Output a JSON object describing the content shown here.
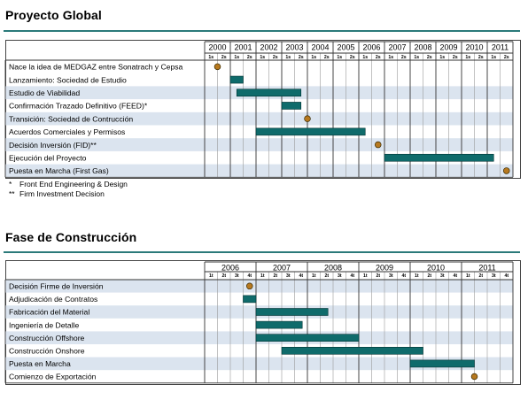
{
  "chart_data": [
    {
      "type": "gantt",
      "title": "Proyecto Global",
      "periods": [
        "2000",
        "2001",
        "2002",
        "2003",
        "2004",
        "2005",
        "2006",
        "2007",
        "2008",
        "2009",
        "2010",
        "2011"
      ],
      "subperiods": [
        "1s",
        "2s"
      ],
      "rows": [
        {
          "label": "Nace la idea de MEDGAZ entre Sonatrach y Cepsa",
          "kind": "milestone",
          "at": 2000.5,
          "shaded": false
        },
        {
          "label": "Lanzamiento: Sociedad de Estudio",
          "kind": "bar",
          "start": 2001.0,
          "end": 2001.5,
          "shaded": false
        },
        {
          "label": "Estudio de Viabilidad",
          "kind": "bar",
          "start": 2001.25,
          "end": 2003.75,
          "shaded": true
        },
        {
          "label": "Confirmación Trazado Definitivo (FEED)*",
          "kind": "bar",
          "start": 2003.0,
          "end": 2003.75,
          "shaded": false
        },
        {
          "label": "Transición: Sociedad de Contrucción",
          "kind": "milestone",
          "at": 2004.0,
          "shaded": true
        },
        {
          "label": "Acuerdos Comerciales y Permisos",
          "kind": "bar",
          "start": 2002.0,
          "end": 2006.25,
          "shaded": false
        },
        {
          "label": "Decisión Inversión (FID)**",
          "kind": "milestone",
          "at": 2006.75,
          "shaded": true
        },
        {
          "label": "Ejecución del Proyecto",
          "kind": "bar",
          "start": 2007.0,
          "end": 2011.25,
          "shaded": false
        },
        {
          "label": "Puesta en Marcha (First Gas)",
          "kind": "milestone",
          "at": 2011.75,
          "shaded": true
        }
      ]
    },
    {
      "type": "gantt",
      "title": "Fase de Construcción",
      "periods": [
        "2006",
        "2007",
        "2008",
        "2009",
        "2010",
        "2011"
      ],
      "subperiods": [
        "1t",
        "2t",
        "3t",
        "4t"
      ],
      "rows": [
        {
          "label": "Decisión Firme de Inversión",
          "kind": "milestone",
          "at": 2006.875,
          "shaded": true
        },
        {
          "label": "Adjudicación de Contratos",
          "kind": "bar",
          "start": 2006.75,
          "end": 2007.0,
          "shaded": false
        },
        {
          "label": "Fabricación del Material",
          "kind": "bar",
          "start": 2007.0,
          "end": 2008.4,
          "shaded": true
        },
        {
          "label": "Ingeniería de Detalle",
          "kind": "bar",
          "start": 2007.0,
          "end": 2007.9,
          "shaded": false
        },
        {
          "label": "Construcción Offshore",
          "kind": "bar",
          "start": 2007.0,
          "end": 2009.0,
          "shaded": true
        },
        {
          "label": "Construcción Onshore",
          "kind": "bar",
          "start": 2007.5,
          "end": 2010.25,
          "shaded": false
        },
        {
          "label": "Puesta en Marcha",
          "kind": "bar",
          "start": 2010.0,
          "end": 2011.25,
          "shaded": true
        },
        {
          "label": "Comienzo de Exportación",
          "kind": "milestone",
          "at": 2011.25,
          "shaded": false
        }
      ]
    }
  ],
  "footnotes": [
    {
      "mark": "*",
      "text": "Front End Engineering & Design"
    },
    {
      "mark": "**",
      "text": "Firm Investment Decision"
    }
  ],
  "colors": {
    "bar": "#0f6b6b",
    "shade": "#dbe4ef",
    "rule": "#2b7a7a",
    "milestone": "#b7791f"
  }
}
